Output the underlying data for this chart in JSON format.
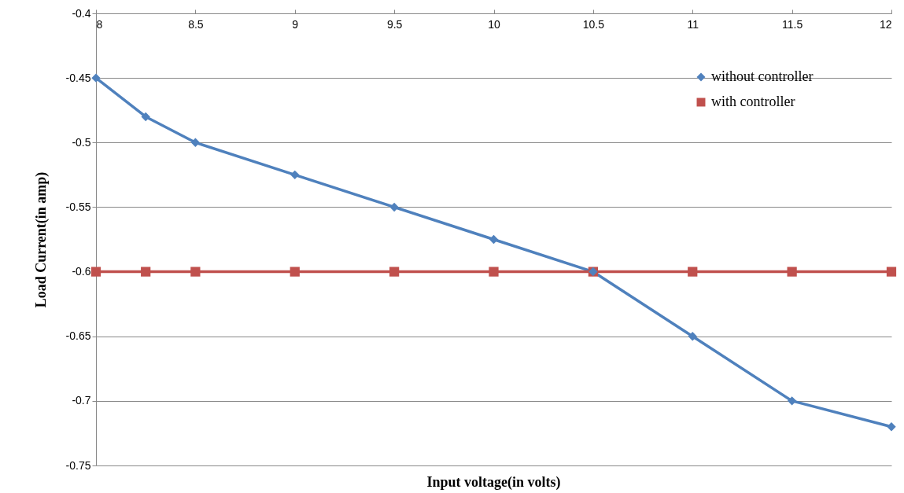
{
  "chart_data": {
    "type": "line",
    "xlabel": "Input voltage(in  volts)",
    "ylabel": "Load Current(in amp)",
    "xlim": [
      8,
      12
    ],
    "xticks": [
      8,
      8.5,
      9,
      9.5,
      10,
      10.5,
      11,
      11.5,
      12
    ],
    "ylim": [
      -0.75,
      -0.4
    ],
    "yticks": [
      -0.75,
      -0.7,
      -0.65,
      -0.6,
      -0.55,
      -0.5,
      -0.45,
      -0.4
    ],
    "grid": "y",
    "legend": "top right",
    "line_style": "solid",
    "series": [
      {
        "name": "without controller",
        "color": "#4f81bd",
        "marker": "diamond",
        "x": [
          8,
          8.25,
          8.5,
          9,
          9.5,
          10,
          10.5,
          11,
          11.5,
          12
        ],
        "values": [
          -0.45,
          -0.48,
          -0.5,
          -0.525,
          -0.55,
          -0.575,
          -0.6,
          -0.65,
          -0.7,
          -0.72
        ]
      },
      {
        "name": "with controller",
        "color": "#c0504d",
        "marker": "square",
        "x": [
          8,
          8.25,
          8.5,
          9,
          9.5,
          10,
          10.5,
          11,
          11.5,
          12
        ],
        "values": [
          -0.6,
          -0.6,
          -0.6,
          -0.6,
          -0.6,
          -0.6,
          -0.6,
          -0.6,
          -0.6,
          -0.6
        ]
      }
    ]
  }
}
